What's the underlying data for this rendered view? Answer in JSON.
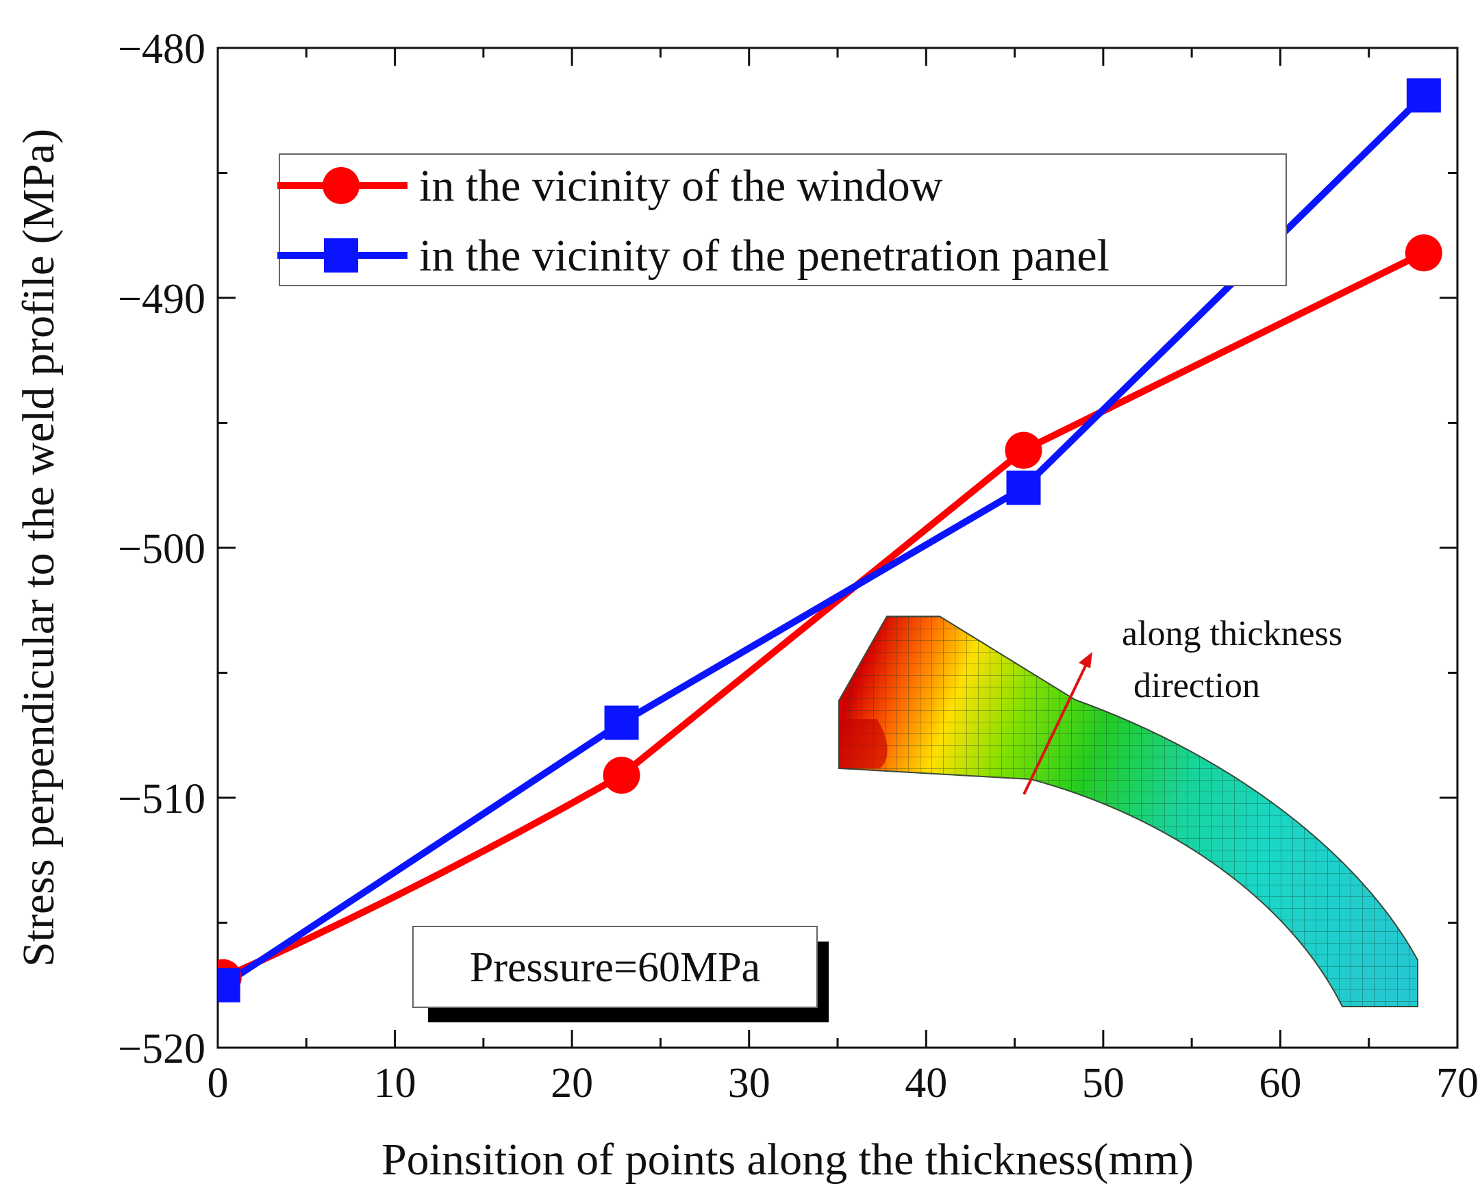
{
  "chart_data": {
    "type": "line",
    "title": "",
    "xlabel": "Poinsition of points along the thickness(mm)",
    "ylabel": "Stress perpendicular to the weld profile (MPa)",
    "xlim": [
      0,
      70
    ],
    "ylim": [
      -520,
      -480
    ],
    "xticks": [
      0,
      10,
      20,
      30,
      40,
      50,
      60,
      70
    ],
    "yticks": [
      -520,
      -510,
      -500,
      -490,
      -480
    ],
    "xtick_labels": [
      "0",
      "10",
      "20",
      "30",
      "40",
      "50",
      "60",
      "70"
    ],
    "ytick_labels": [
      "−520",
      "−510",
      "−500",
      "−490",
      "−480"
    ],
    "legend_position": "top-left",
    "series": [
      {
        "name": "in the vicinity of the window",
        "color": "#ff0000",
        "marker": "circle",
        "x": [
          0.3,
          22.8,
          45.5,
          68.1
        ],
        "y": [
          -517.2,
          -509.1,
          -496.1,
          -488.2
        ]
      },
      {
        "name": "in the vicinity of the penetration panel",
        "color": "#0a14ff",
        "marker": "square",
        "x": [
          0.3,
          22.8,
          45.5,
          68.1
        ],
        "y": [
          -517.5,
          -507.0,
          -497.6,
          -481.9
        ]
      }
    ],
    "annotations": {
      "pressure": "Pressure=60MPa",
      "direction_line1": "along thickness",
      "direction_line2": "direction"
    }
  }
}
